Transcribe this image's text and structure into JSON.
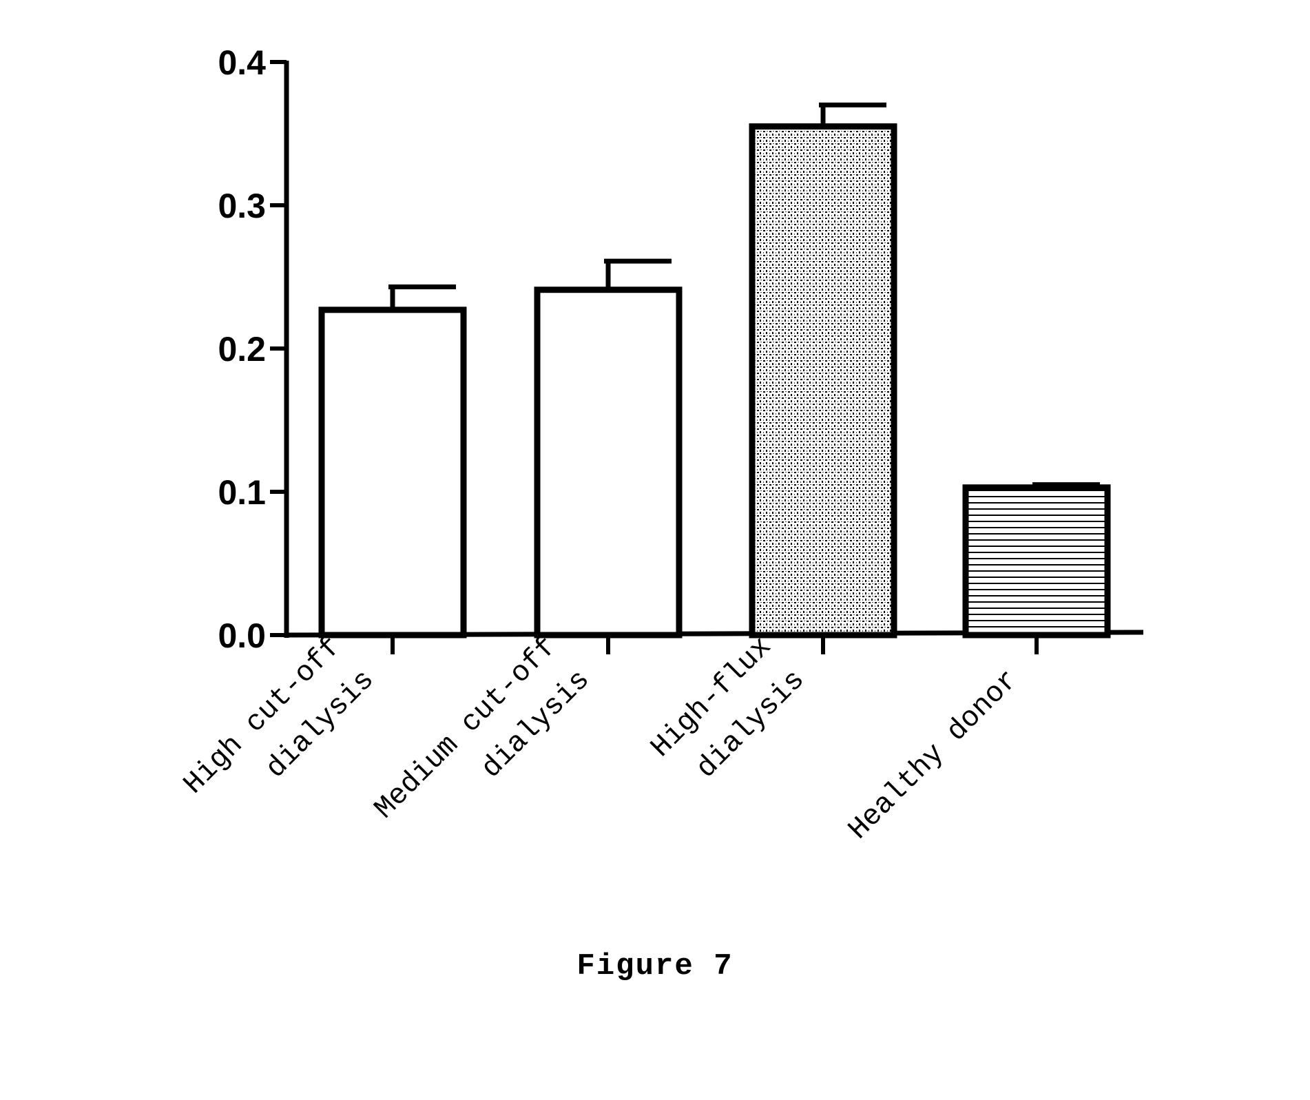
{
  "figure": {
    "caption": "Figure 7"
  },
  "chart_data": {
    "type": "bar",
    "title": "",
    "xlabel": "",
    "ylabel": "",
    "ylim": [
      0,
      0.4
    ],
    "yticks": [
      0.0,
      0.1,
      0.2,
      0.3,
      0.4
    ],
    "ytick_labels": [
      "0.0",
      "0.1",
      "0.2",
      "0.3",
      "0.4"
    ],
    "categories": [
      [
        "High cut-off",
        "dialysis"
      ],
      [
        "Medium cut-off",
        "dialysis"
      ],
      [
        "High-flux",
        "dialysis"
      ],
      [
        "Healthy donor"
      ]
    ],
    "values": [
      0.227,
      0.241,
      0.355,
      0.103
    ],
    "error_upper": [
      0.243,
      0.261,
      0.37,
      0.105
    ],
    "fills": [
      "open",
      "open",
      "dotted",
      "horizontal-lines"
    ],
    "grid": false,
    "legend": "none"
  }
}
